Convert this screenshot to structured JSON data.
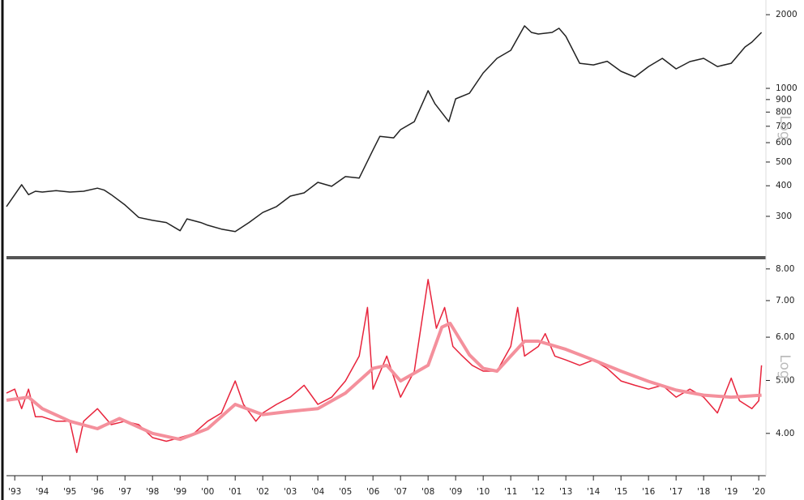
{
  "chart_data": [
    {
      "type": "line",
      "log_y": true,
      "ylabel": "Log",
      "xlim": [
        1992.7,
        2020.26
      ],
      "ylim": [
        208,
        2296
      ],
      "yticks": [
        300,
        400,
        500,
        600,
        700,
        800,
        900,
        1000,
        2000
      ],
      "series": [
        {
          "color": "#222222",
          "x": [
            1992.7,
            1993,
            1993.25,
            1993.5,
            1993.75,
            1994,
            1994.5,
            1995,
            1995.5,
            1996,
            1996.25,
            1996.5,
            1997,
            1997.5,
            1998,
            1998.5,
            1999,
            1999.25,
            1999.75,
            2000,
            2000.5,
            2001,
            2001.5,
            2002,
            2002.5,
            2003,
            2003.5,
            2004,
            2004.5,
            2005,
            2005.5,
            2006,
            2006.25,
            2006.75,
            2007,
            2007.5,
            2008,
            2008.25,
            2008.75,
            2009,
            2009.5,
            2010,
            2010.5,
            2011,
            2011.5,
            2011.75,
            2012,
            2012.5,
            2012.75,
            2013,
            2013.5,
            2014,
            2014.5,
            2015,
            2015.5,
            2016,
            2016.5,
            2017,
            2017.5,
            2018,
            2018.5,
            2019,
            2019.5,
            2019.75,
            2020.1
          ],
          "values": [
            329,
            368,
            404,
            368,
            380,
            377,
            382,
            377,
            380,
            391,
            384,
            368,
            334,
            297,
            289,
            283,
            262,
            293,
            283,
            276,
            266,
            260,
            283,
            311,
            329,
            363,
            374,
            413,
            398,
            436,
            430,
            560,
            637,
            628,
            678,
            731,
            978,
            865,
            731,
            906,
            955,
            1156,
            1326,
            1430,
            1800,
            1692,
            1667,
            1692,
            1760,
            1630,
            1266,
            1247,
            1290,
            1174,
            1113,
            1228,
            1326,
            1201,
            1286,
            1326,
            1228,
            1266,
            1475,
            1545,
            1692
          ]
        }
      ]
    },
    {
      "type": "line",
      "log_y": true,
      "ylabel": "Log",
      "xlim": [
        1992.7,
        2020.26
      ],
      "ylim": [
        3.37,
        8.33
      ],
      "yticks": [
        {
          "value": 4,
          "label": "4.00"
        },
        {
          "value": 5,
          "label": "5.00"
        },
        {
          "value": 6,
          "label": "6.00"
        },
        {
          "value": 7,
          "label": "7.00"
        },
        {
          "value": 8,
          "label": "8.00"
        }
      ],
      "xticks": [
        {
          "value": 1993,
          "label": "'93"
        },
        {
          "value": 1994,
          "label": "'94"
        },
        {
          "value": 1995,
          "label": "'95"
        },
        {
          "value": 1996,
          "label": "'96"
        },
        {
          "value": 1997,
          "label": "'97"
        },
        {
          "value": 1998,
          "label": "'98"
        },
        {
          "value": 1999,
          "label": "'99"
        },
        {
          "value": 2000,
          "label": "'00"
        },
        {
          "value": 2001,
          "label": "'01"
        },
        {
          "value": 2002,
          "label": "'02"
        },
        {
          "value": 2003,
          "label": "'03"
        },
        {
          "value": 2004,
          "label": "'04"
        },
        {
          "value": 2005,
          "label": "'05"
        },
        {
          "value": 2006,
          "label": "'06"
        },
        {
          "value": 2007,
          "label": "'07"
        },
        {
          "value": 2008,
          "label": "'08"
        },
        {
          "value": 2009,
          "label": "'09"
        },
        {
          "value": 2010,
          "label": "'10"
        },
        {
          "value": 2011,
          "label": "'11"
        },
        {
          "value": 2012,
          "label": "'12"
        },
        {
          "value": 2013,
          "label": "'13"
        },
        {
          "value": 2014,
          "label": "'14"
        },
        {
          "value": 2015,
          "label": "'15"
        },
        {
          "value": 2016,
          "label": "'16"
        },
        {
          "value": 2017,
          "label": "'17"
        },
        {
          "value": 2018,
          "label": "'18"
        },
        {
          "value": 2019,
          "label": "'19"
        },
        {
          "value": 2020,
          "label": "'20"
        }
      ],
      "series": [
        {
          "color": "#e8243c",
          "x": [
            1992.7,
            1993,
            1993.25,
            1993.5,
            1993.75,
            1994,
            1994.5,
            1995,
            1995.25,
            1995.5,
            1996,
            1996.5,
            1997,
            1997.5,
            1998,
            1998.5,
            1999,
            1999.5,
            2000,
            2000.5,
            2001,
            2001.3,
            2001.75,
            2002,
            2002.5,
            2003,
            2003.5,
            2004,
            2004.5,
            2005,
            2005.5,
            2005.8,
            2006,
            2006.5,
            2007,
            2007.5,
            2008,
            2008.3,
            2008.6,
            2008.9,
            2009.2,
            2009.6,
            2010,
            2010.5,
            2011,
            2011.25,
            2011.5,
            2012,
            2012.25,
            2012.6,
            2013,
            2013.5,
            2014,
            2014.5,
            2015,
            2015.5,
            2016,
            2016.5,
            2017,
            2017.5,
            2018,
            2018.5,
            2019,
            2019.3,
            2019.75,
            2020,
            2020.1
          ],
          "values": [
            4.74,
            4.82,
            4.44,
            4.82,
            4.29,
            4.29,
            4.21,
            4.21,
            3.69,
            4.21,
            4.44,
            4.15,
            4.21,
            4.15,
            3.93,
            3.87,
            3.93,
            4.0,
            4.21,
            4.36,
            4.99,
            4.52,
            4.21,
            4.36,
            4.52,
            4.66,
            4.9,
            4.52,
            4.66,
            4.99,
            5.54,
            6.8,
            4.82,
            5.54,
            4.66,
            5.2,
            7.65,
            6.23,
            6.8,
            5.77,
            5.57,
            5.33,
            5.2,
            5.2,
            5.77,
            6.8,
            5.54,
            5.77,
            6.09,
            5.54,
            5.45,
            5.33,
            5.45,
            5.26,
            4.99,
            4.9,
            4.82,
            4.9,
            4.66,
            4.82,
            4.66,
            4.36,
            5.05,
            4.59,
            4.44,
            4.59,
            5.33
          ]
        },
        {
          "color": "#f4909c",
          "x": [
            1992.7,
            1993.5,
            1994,
            1995,
            1996,
            1996.8,
            1998,
            1999,
            2000,
            2001,
            2002,
            2003,
            2004,
            2005,
            2006,
            2006.5,
            2007,
            2008,
            2008.5,
            2008.8,
            2009.5,
            2010,
            2010.5,
            2011,
            2011.5,
            2012,
            2013,
            2014,
            2015,
            2016,
            2017,
            2018,
            2019,
            2020.1
          ],
          "values": [
            4.6,
            4.66,
            4.44,
            4.21,
            4.08,
            4.26,
            4.0,
            3.9,
            4.08,
            4.52,
            4.33,
            4.39,
            4.44,
            4.74,
            5.26,
            5.33,
            4.99,
            5.33,
            6.26,
            6.36,
            5.57,
            5.26,
            5.2,
            5.54,
            5.9,
            5.9,
            5.7,
            5.45,
            5.2,
            4.98,
            4.8,
            4.7,
            4.66,
            4.7
          ]
        }
      ]
    }
  ]
}
